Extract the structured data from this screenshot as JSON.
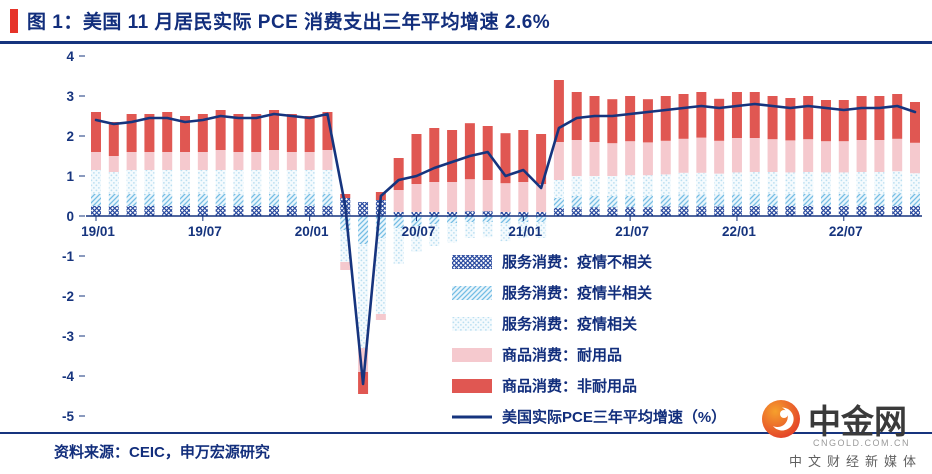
{
  "header": {
    "title": "图 1：美国 11 月居民实际 PCE 消费支出三年平均增速 2.6%",
    "accent_color": "#e63329",
    "title_color": "#122e7c"
  },
  "footer": {
    "source": "资料来源：CEIC，申万宏源研究"
  },
  "watermark": {
    "brand": "中金网",
    "domain": "CNGOLD.COM.CN",
    "tagline": "中文财经新媒体"
  },
  "chart_data": {
    "type": "bar",
    "subtype": "stacked-bar-with-line-overlay",
    "title": "美国 11 月居民实际 PCE 消费支出三年平均增速 2.6%",
    "grid": false,
    "legend_position": "center-right-overlay",
    "ylim": [
      -5,
      4
    ],
    "yticks": [
      4,
      3,
      2,
      1,
      0,
      -1,
      -2,
      -3,
      -4,
      -5
    ],
    "x_tick_labels": [
      "19/01",
      "19/07",
      "20/01",
      "20/07",
      "21/01",
      "21/07",
      "22/01",
      "22/07"
    ],
    "x_tick_indices": [
      0,
      6,
      12,
      18,
      24,
      30,
      36,
      42
    ],
    "months": [
      "19/01",
      "19/02",
      "19/03",
      "19/04",
      "19/05",
      "19/06",
      "19/07",
      "19/08",
      "19/09",
      "19/10",
      "19/11",
      "19/12",
      "20/01",
      "20/02",
      "20/03",
      "20/04",
      "20/05",
      "20/06",
      "20/07",
      "20/08",
      "20/09",
      "20/10",
      "20/11",
      "20/12",
      "21/01",
      "21/02",
      "21/03",
      "21/04",
      "21/05",
      "21/06",
      "21/07",
      "21/08",
      "21/09",
      "21/10",
      "21/11",
      "21/12",
      "22/01",
      "22/02",
      "22/03",
      "22/04",
      "22/05",
      "22/06",
      "22/07",
      "22/08",
      "22/09",
      "22/10",
      "22/11"
    ],
    "series": [
      {
        "name": "服务消费：疫情不相关",
        "style": "crosshatch",
        "color": "#27489e",
        "values": [
          0.25,
          0.25,
          0.25,
          0.25,
          0.25,
          0.25,
          0.25,
          0.25,
          0.25,
          0.25,
          0.25,
          0.25,
          0.25,
          0.25,
          0.45,
          0.35,
          0.4,
          0.1,
          0.1,
          0.1,
          0.1,
          0.12,
          0.12,
          0.1,
          0.1,
          0.1,
          0.2,
          0.22,
          0.22,
          0.22,
          0.22,
          0.22,
          0.24,
          0.24,
          0.24,
          0.24,
          0.24,
          0.25,
          0.25,
          0.25,
          0.25,
          0.25,
          0.25,
          0.25,
          0.25,
          0.25,
          0.25
        ]
      },
      {
        "name": "服务消费：疫情半相关",
        "style": "diagonal",
        "color": "#74bde4",
        "values": [
          0.3,
          0.3,
          0.3,
          0.3,
          0.3,
          0.3,
          0.3,
          0.3,
          0.3,
          0.3,
          0.3,
          0.3,
          0.3,
          0.3,
          -0.35,
          -0.7,
          -0.55,
          -0.3,
          -0.25,
          -0.2,
          -0.18,
          -0.15,
          -0.15,
          -0.18,
          -0.15,
          -0.15,
          0.25,
          0.28,
          0.28,
          0.28,
          0.28,
          0.28,
          0.28,
          0.3,
          0.3,
          0.3,
          0.3,
          0.3,
          0.3,
          0.3,
          0.3,
          0.3,
          0.3,
          0.3,
          0.3,
          0.32,
          0.3
        ]
      },
      {
        "name": "服务消费：疫情相关",
        "style": "dots",
        "color": "#badff2",
        "values": [
          0.6,
          0.55,
          0.6,
          0.6,
          0.6,
          0.6,
          0.6,
          0.6,
          0.6,
          0.6,
          0.6,
          0.6,
          0.6,
          0.6,
          -0.8,
          -2.6,
          -1.9,
          -0.9,
          -0.65,
          -0.55,
          -0.48,
          -0.4,
          -0.38,
          -0.45,
          -0.4,
          -0.4,
          0.45,
          0.5,
          0.5,
          0.5,
          0.52,
          0.52,
          0.52,
          0.54,
          0.54,
          0.52,
          0.55,
          0.55,
          0.55,
          0.54,
          0.55,
          0.54,
          0.54,
          0.55,
          0.55,
          0.55,
          0.52
        ]
      },
      {
        "name": "商品消费：耐用品",
        "style": "solid",
        "color": "#f5c9ce",
        "values": [
          0.45,
          0.4,
          0.45,
          0.45,
          0.45,
          0.45,
          0.45,
          0.5,
          0.45,
          0.45,
          0.5,
          0.45,
          0.45,
          0.5,
          -0.2,
          -0.6,
          -0.15,
          0.55,
          0.7,
          0.75,
          0.75,
          0.8,
          0.78,
          0.72,
          0.75,
          0.7,
          0.95,
          0.9,
          0.85,
          0.82,
          0.85,
          0.82,
          0.84,
          0.85,
          0.88,
          0.82,
          0.86,
          0.85,
          0.82,
          0.8,
          0.82,
          0.78,
          0.78,
          0.8,
          0.8,
          0.81,
          0.76
        ]
      },
      {
        "name": "商品消费：非耐用品",
        "style": "solid",
        "color": "#e05752",
        "values": [
          1.0,
          0.85,
          0.95,
          0.95,
          1.0,
          0.9,
          0.95,
          1.0,
          0.95,
          0.95,
          1.0,
          0.95,
          0.9,
          0.95,
          0.1,
          -0.55,
          0.2,
          0.8,
          1.25,
          1.35,
          1.3,
          1.4,
          1.35,
          1.25,
          1.3,
          1.25,
          1.55,
          1.2,
          1.15,
          1.1,
          1.13,
          1.08,
          1.12,
          1.12,
          1.14,
          1.05,
          1.15,
          1.15,
          1.08,
          1.06,
          1.08,
          1.03,
          1.03,
          1.1,
          1.1,
          1.12,
          1.02
        ]
      }
    ],
    "line": {
      "name": "美国实际PCE三年平均增速（%）",
      "color": "#16347e",
      "values": [
        2.4,
        2.3,
        2.35,
        2.45,
        2.45,
        2.35,
        2.4,
        2.5,
        2.45,
        2.45,
        2.55,
        2.5,
        2.45,
        2.55,
        0.25,
        -4.2,
        0.5,
        0.9,
        1.0,
        1.2,
        1.35,
        1.5,
        1.6,
        1.0,
        1.15,
        0.7,
        2.2,
        2.45,
        2.5,
        2.5,
        2.55,
        2.6,
        2.65,
        2.7,
        2.75,
        2.7,
        2.75,
        2.8,
        2.75,
        2.7,
        2.75,
        2.7,
        2.65,
        2.7,
        2.7,
        2.75,
        2.6
      ]
    }
  }
}
